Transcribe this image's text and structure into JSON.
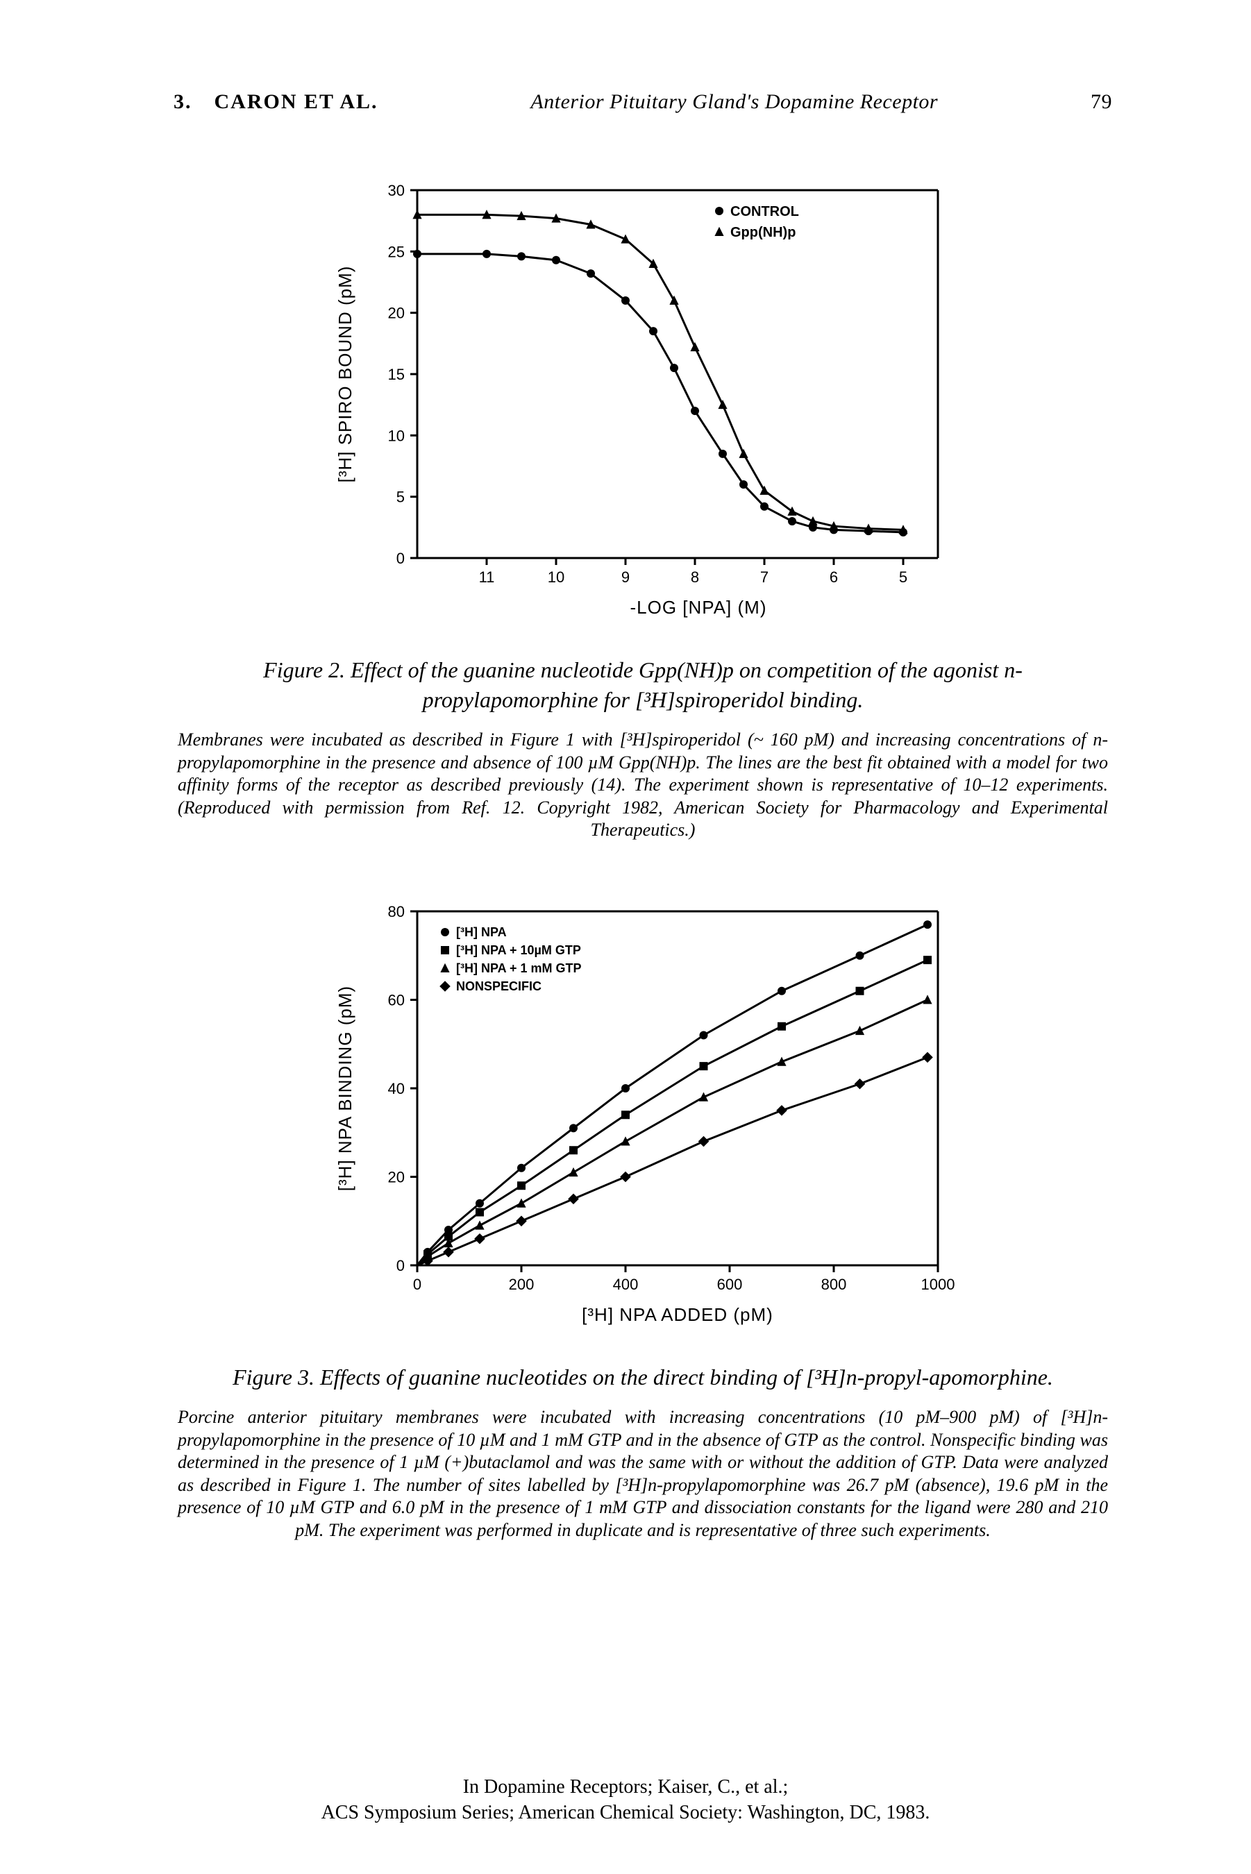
{
  "header": {
    "chapter": "3.",
    "authors": "CARON ET AL.",
    "running_title": "Anterior Pituitary Gland's Dopamine Receptor",
    "page": "79"
  },
  "figure2": {
    "title": "Figure 2.   Effect of the guanine nucleotide Gpp(NH)p on competition of the agonist n-propylapomorphine for [³H]spiroperidol binding.",
    "caption": "Membranes were incubated as described in Figure 1 with [³H]spiroperidol (~ 160 pM) and increasing concentrations of n-propylapomorphine in the presence and absence of 100 µM Gpp(NH)p. The lines are the best fit obtained with a model for two affinity forms of the receptor as described previously (14). The experiment shown is representative of 10–12 experiments. (Reproduced with permission from Ref. 12. Copyright 1982, American Society for Pharmacology and Experimental Therapeutics.)",
    "x_label": "-LOG [NPA]  (M)",
    "y_label": "[³H] SPIRO  BOUND  (pM)",
    "x_ticks": [
      "11",
      "10",
      "9",
      "8",
      "7",
      "6",
      "5"
    ],
    "y_ticks": [
      "0",
      "5",
      "10",
      "15",
      "20",
      "25",
      "30"
    ],
    "y_range": [
      0,
      30
    ],
    "legend": [
      {
        "label": "CONTROL",
        "marker": "circle"
      },
      {
        "label": "Gpp(NH)p",
        "marker": "triangle"
      }
    ],
    "series": {
      "control": {
        "marker": "circle",
        "color": "#000000",
        "x_logneg": [
          12,
          11,
          10.5,
          10,
          9.5,
          9,
          8.6,
          8.3,
          8,
          7.6,
          7.3,
          7,
          6.6,
          6.3,
          6,
          5.5,
          5
        ],
        "y": [
          24.8,
          24.8,
          24.6,
          24.3,
          23.2,
          21.0,
          18.5,
          15.5,
          12.0,
          8.5,
          6.0,
          4.2,
          3.0,
          2.5,
          2.3,
          2.2,
          2.1
        ]
      },
      "gppnhp": {
        "marker": "triangle",
        "color": "#000000",
        "x_logneg": [
          12,
          11,
          10.5,
          10,
          9.5,
          9,
          8.6,
          8.3,
          8,
          7.6,
          7.3,
          7,
          6.6,
          6.3,
          6,
          5.5,
          5
        ],
        "y": [
          28.0,
          28.0,
          27.9,
          27.7,
          27.2,
          26.0,
          24.0,
          21.0,
          17.2,
          12.5,
          8.5,
          5.5,
          3.8,
          3.0,
          2.6,
          2.4,
          2.3
        ]
      }
    },
    "chart": {
      "background": "#ffffff",
      "axis_color": "#000000",
      "line_width": 3,
      "tick_len": 10,
      "axis_font": 22,
      "label_font": 26,
      "legend_font": 20
    }
  },
  "figure3": {
    "title": "Figure 3.  Effects of guanine nucleotides on the direct binding of [³H]n-propyl-apomorphine.",
    "caption": "Porcine anterior pituitary membranes were incubated with increasing concentrations (10 pM–900 pM) of [³H]n-propylapomorphine in the presence of 10 µM and 1 mM GTP and in the absence of GTP as the control. Nonspecific binding was determined in the presence of 1 µM (+)butaclamol and was the same with or without the addition of GTP. Data were analyzed as described in Figure 1. The number of sites labelled by [³H]n-propylapomorphine was 26.7 pM (absence), 19.6 pM in the presence of 10 µM GTP and 6.0 pM in the presence of 1 mM GTP and dissociation constants for the ligand were 280 and 210 pM. The experiment was performed in duplicate and is representative of three such experiments.",
    "x_label": "[³H] NPA  ADDED  (pM)",
    "y_label": "[³H] NPA  BINDING  (pM)",
    "x_ticks": [
      "0",
      "200",
      "400",
      "600",
      "800",
      "1000"
    ],
    "y_ticks": [
      "0",
      "20",
      "40",
      "60",
      "80"
    ],
    "x_range": [
      0,
      1000
    ],
    "y_range": [
      0,
      80
    ],
    "legend": [
      {
        "label": "[³H] NPA",
        "marker": "circle"
      },
      {
        "label": "[³H] NPA  + 10µM GTP",
        "marker": "square"
      },
      {
        "label": "[³H] NPA  + 1 mM GTP",
        "marker": "triangle"
      },
      {
        "label": "NONSPECIFIC",
        "marker": "diamond"
      }
    ],
    "series": {
      "npa": {
        "marker": "circle",
        "color": "#000000",
        "x": [
          20,
          60,
          120,
          200,
          300,
          400,
          550,
          700,
          850,
          980
        ],
        "y": [
          3,
          8,
          14,
          22,
          31,
          40,
          52,
          62,
          70,
          77
        ]
      },
      "gtp10": {
        "marker": "square",
        "color": "#000000",
        "x": [
          20,
          60,
          120,
          200,
          300,
          400,
          550,
          700,
          850,
          980
        ],
        "y": [
          2.5,
          6.5,
          12,
          18,
          26,
          34,
          45,
          54,
          62,
          69
        ]
      },
      "gtp1mm": {
        "marker": "triangle",
        "color": "#000000",
        "x": [
          20,
          60,
          120,
          200,
          300,
          400,
          550,
          700,
          850,
          980
        ],
        "y": [
          2,
          5,
          9,
          14,
          21,
          28,
          38,
          46,
          53,
          60
        ]
      },
      "nonspecific": {
        "marker": "diamond",
        "color": "#000000",
        "x": [
          20,
          60,
          120,
          200,
          300,
          400,
          550,
          700,
          850,
          980
        ],
        "y": [
          1,
          3,
          6,
          10,
          15,
          20,
          28,
          35,
          41,
          47
        ]
      }
    },
    "chart": {
      "background": "#ffffff",
      "axis_color": "#000000",
      "line_width": 3,
      "tick_len": 10,
      "axis_font": 22,
      "label_font": 26,
      "legend_font": 18
    }
  },
  "footer": {
    "line1": "In Dopamine Receptors; Kaiser, C., et al.;",
    "line2": "ACS Symposium Series; American Chemical Society: Washington, DC, 1983."
  }
}
